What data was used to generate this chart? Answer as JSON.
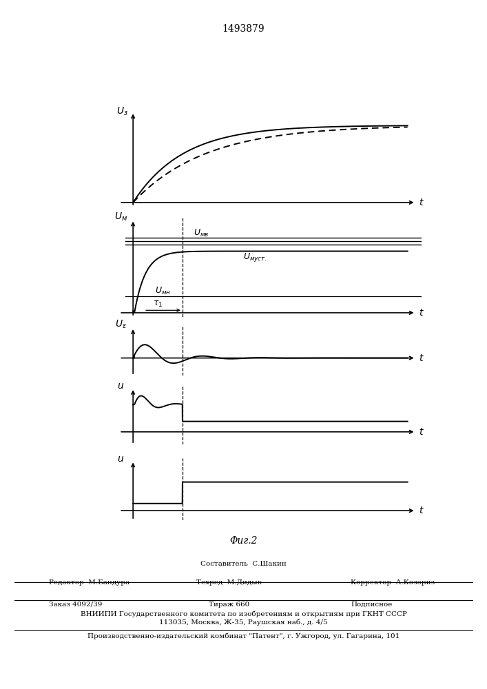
{
  "patent_number": "1493879",
  "fig_label": "Φиг.2",
  "background_color": "#ffffff",
  "line_color": "#000000",
  "footer_text1_center": "Составитель  С.Шакин",
  "footer_text1_left": "Редактор  М.Бандура",
  "footer_text1_mid": "Техред  М.Дидык",
  "footer_text1_right": "Корректор  А.Козориз",
  "footer_text2a": "Заказ 4092/39",
  "footer_text2b": "Тираж 660",
  "footer_text2c": "Подписное",
  "footer_text3": "ВНИИПИ Государственного комитета по изобретениям и открытиям при ГКНТ СССР",
  "footer_text4": "113035, Москва, Ж-35, Раушская наб., д. 4/5",
  "footer_text5": "Производственно-издательский комбинат \"Патент\", г. Ужгород, ул. Гагарина, 101"
}
